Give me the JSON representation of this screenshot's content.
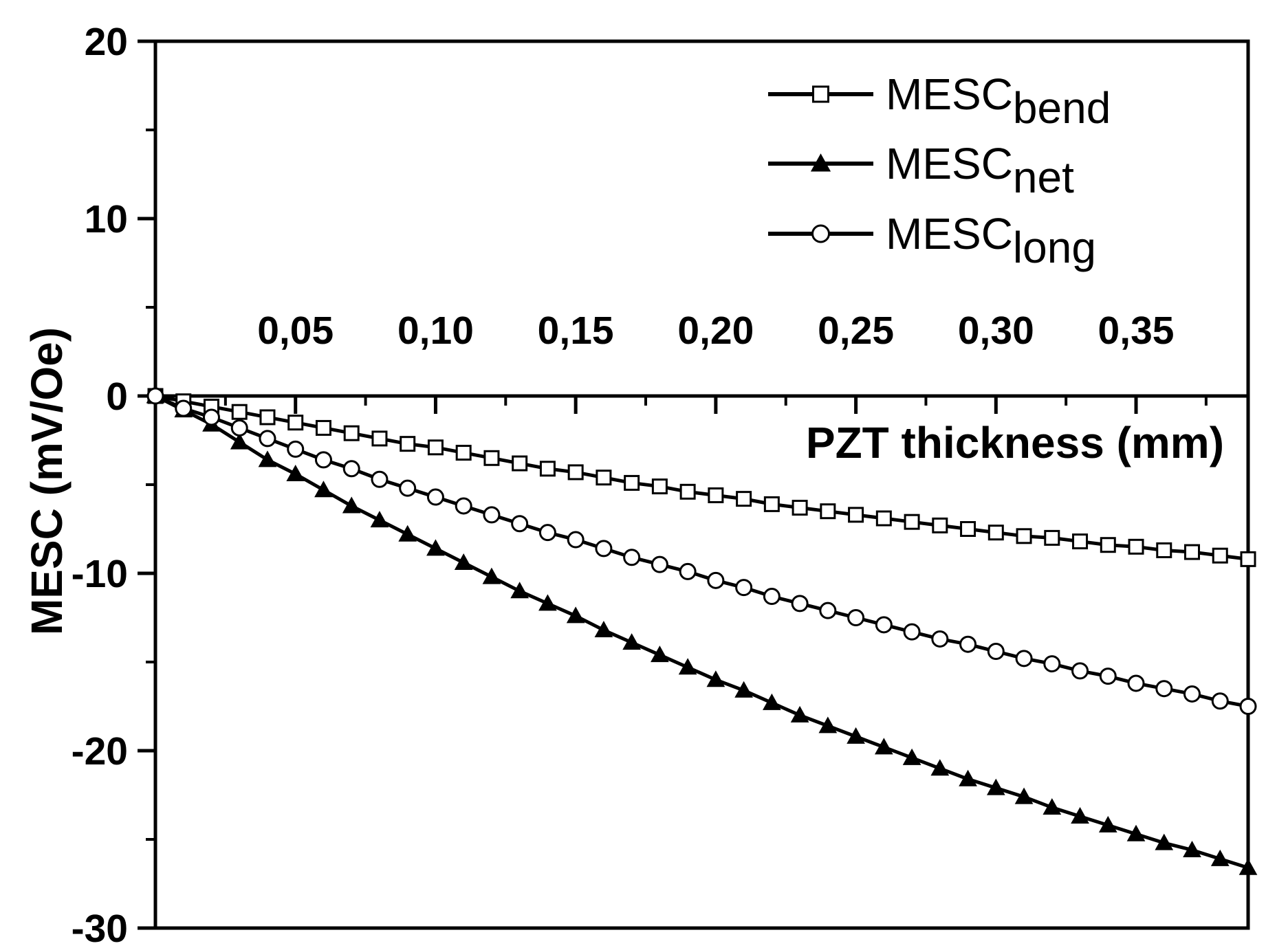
{
  "chart_data": {
    "type": "line",
    "xlabel": "PZT thickness (mm)",
    "ylabel": "MESC (mV/Oe)",
    "xlim": [
      0.0,
      0.39
    ],
    "ylim": [
      -30,
      20
    ],
    "x_major_ticks": [
      0.05,
      0.1,
      0.15,
      0.2,
      0.25,
      0.3,
      0.35
    ],
    "x_tick_labels": [
      "0,05",
      "0,10",
      "0,15",
      "0,20",
      "0,25",
      "0,30",
      "0,35"
    ],
    "y_major_ticks": [
      20,
      10,
      0,
      -10,
      -20,
      -30
    ],
    "y_tick_labels": [
      "20",
      "10",
      "0",
      "-10",
      "-20",
      "-30"
    ],
    "legend_position": "top-right",
    "x": [
      0.0,
      0.01,
      0.02,
      0.03,
      0.04,
      0.05,
      0.06,
      0.07,
      0.08,
      0.09,
      0.1,
      0.11,
      0.12,
      0.13,
      0.14,
      0.15,
      0.16,
      0.17,
      0.18,
      0.19,
      0.2,
      0.21,
      0.22,
      0.23,
      0.24,
      0.25,
      0.26,
      0.27,
      0.28,
      0.29,
      0.3,
      0.31,
      0.32,
      0.33,
      0.34,
      0.35,
      0.36,
      0.37,
      0.38,
      0.39
    ],
    "series": [
      {
        "name": "MESC_bend",
        "label_main": "MESC",
        "label_sub": "bend",
        "marker": "square-open",
        "values": [
          0.0,
          -0.3,
          -0.6,
          -0.9,
          -1.2,
          -1.5,
          -1.8,
          -2.1,
          -2.4,
          -2.7,
          -2.9,
          -3.2,
          -3.5,
          -3.8,
          -4.1,
          -4.3,
          -4.6,
          -4.9,
          -5.1,
          -5.4,
          -5.6,
          -5.8,
          -6.1,
          -6.3,
          -6.5,
          -6.7,
          -6.9,
          -7.1,
          -7.3,
          -7.5,
          -7.7,
          -7.9,
          -8.0,
          -8.2,
          -8.4,
          -8.5,
          -8.7,
          -8.8,
          -9.0,
          -9.2
        ]
      },
      {
        "name": "MESC_net",
        "label_main": "MESC",
        "label_sub": "net",
        "marker": "triangle-filled",
        "values": [
          0.0,
          -0.8,
          -1.6,
          -2.6,
          -3.6,
          -4.4,
          -5.3,
          -6.2,
          -7.0,
          -7.8,
          -8.6,
          -9.4,
          -10.2,
          -11.0,
          -11.7,
          -12.4,
          -13.2,
          -13.9,
          -14.6,
          -15.3,
          -16.0,
          -16.6,
          -17.3,
          -18.0,
          -18.6,
          -19.2,
          -19.8,
          -20.4,
          -21.0,
          -21.6,
          -22.1,
          -22.6,
          -23.2,
          -23.7,
          -24.2,
          -24.7,
          -25.2,
          -25.6,
          -26.1,
          -26.6
        ]
      },
      {
        "name": "MESC_long",
        "label_main": "MESC",
        "label_sub": "long",
        "marker": "circle-open",
        "values": [
          0.0,
          -0.7,
          -1.2,
          -1.8,
          -2.4,
          -3.0,
          -3.6,
          -4.1,
          -4.7,
          -5.2,
          -5.7,
          -6.2,
          -6.7,
          -7.2,
          -7.7,
          -8.1,
          -8.6,
          -9.1,
          -9.5,
          -9.9,
          -10.4,
          -10.8,
          -11.3,
          -11.7,
          -12.1,
          -12.5,
          -12.9,
          -13.3,
          -13.7,
          -14.0,
          -14.4,
          -14.8,
          -15.1,
          -15.5,
          -15.8,
          -16.2,
          -16.5,
          -16.8,
          -17.2,
          -17.5
        ]
      }
    ]
  }
}
